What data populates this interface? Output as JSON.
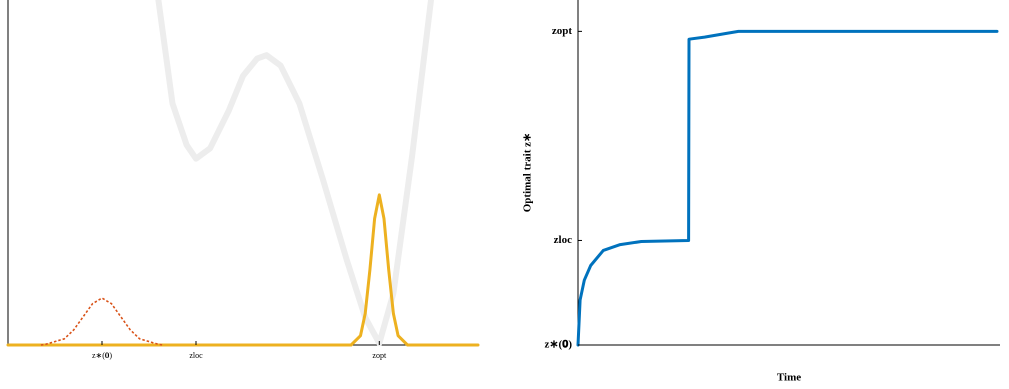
{
  "chart_data": [
    {
      "type": "line",
      "xlim": [
        0,
        10
      ],
      "ylim": [
        0,
        10
      ],
      "xticks": [
        {
          "value": 2.0,
          "label": "z∗(𝟎)"
        },
        {
          "value": 4.0,
          "label": "zloc"
        },
        {
          "value": 7.9,
          "label": "zopt"
        }
      ],
      "series": [
        {
          "color": "#ededed",
          "dash": "solid",
          "x": [
            3.2,
            3.5,
            3.8,
            4.0,
            4.3,
            4.7,
            5.0,
            5.3,
            5.5,
            5.8,
            6.2,
            6.7,
            7.2,
            7.6,
            7.9,
            8.2,
            8.6,
            9.0
          ],
          "values": [
            10,
            7.0,
            5.8,
            5.4,
            5.7,
            6.8,
            7.8,
            8.3,
            8.4,
            8.1,
            7.0,
            4.8,
            2.5,
            0.8,
            0.05,
            1.5,
            5.5,
            10
          ]
        },
        {
          "color": "#edb120",
          "dash": "solid",
          "x": [
            0,
            7.3,
            7.5,
            7.6,
            7.7,
            7.8,
            7.9,
            8.0,
            8.1,
            8.2,
            8.3,
            8.5,
            10
          ],
          "values": [
            0,
            0,
            0.27,
            0.91,
            2.18,
            3.66,
            4.35,
            3.66,
            2.18,
            0.91,
            0.27,
            0,
            0
          ]
        },
        {
          "color": "#d95319",
          "dash": "dotted",
          "x": [
            0.7,
            0.8,
            1.2,
            1.4,
            1.6,
            1.8,
            2.0,
            2.2,
            2.4,
            2.6,
            2.8,
            3.2,
            3.3
          ],
          "values": [
            0,
            0.02,
            0.18,
            0.44,
            0.82,
            1.2,
            1.36,
            1.2,
            0.82,
            0.44,
            0.18,
            0.02,
            0
          ]
        }
      ]
    },
    {
      "type": "line",
      "xlabel": "Time",
      "ylabel": "Optimal trait z∗",
      "xlim": [
        0,
        10
      ],
      "ylim": [
        2.0,
        8.6
      ],
      "yticks": [
        {
          "value": 2.0,
          "label": "z∗(𝟎)"
        },
        {
          "value": 4.0,
          "label": "zloc"
        },
        {
          "value": 8.0,
          "label": "zopt"
        }
      ],
      "series": [
        {
          "color": "#0072bd",
          "dash": "solid",
          "x": [
            0,
            0.05,
            0.15,
            0.3,
            0.6,
            1.0,
            1.5,
            2.62,
            2.63,
            3.0,
            3.5,
            3.8,
            9.93
          ],
          "values": [
            2.0,
            2.86,
            3.24,
            3.52,
            3.81,
            3.92,
            3.98,
            4.0,
            7.85,
            7.89,
            7.96,
            8.0,
            8.0
          ]
        }
      ]
    }
  ]
}
